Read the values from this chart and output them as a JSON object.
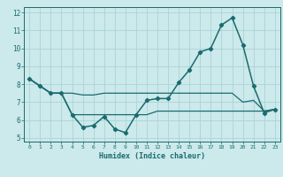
{
  "xlabel": "Humidex (Indice chaleur)",
  "background_color": "#cce9eb",
  "grid_color": "#aad4d6",
  "line_color": "#1a6b6e",
  "xlim": [
    -0.5,
    23.5
  ],
  "ylim": [
    4.8,
    12.3
  ],
  "yticks": [
    5,
    6,
    7,
    8,
    9,
    10,
    11,
    12
  ],
  "xticks": [
    0,
    1,
    2,
    3,
    4,
    5,
    6,
    7,
    8,
    9,
    10,
    11,
    12,
    13,
    14,
    15,
    16,
    17,
    18,
    19,
    20,
    21,
    22,
    23
  ],
  "series": [
    {
      "x": [
        0,
        1,
        2,
        3,
        4,
        5,
        6,
        7,
        8,
        9,
        10,
        11,
        12,
        13,
        14,
        15,
        16,
        17,
        18,
        19,
        20,
        21,
        22,
        23
      ],
      "y": [
        8.3,
        7.9,
        7.5,
        7.5,
        6.3,
        5.6,
        5.7,
        6.2,
        5.5,
        5.3,
        6.3,
        7.1,
        7.2,
        7.2,
        8.1,
        8.8,
        9.8,
        10.0,
        11.3,
        11.7,
        10.2,
        7.9,
        6.4,
        6.6
      ],
      "marker": "D",
      "marker_size": 2.2,
      "linewidth": 1.1
    },
    {
      "x": [
        0,
        1,
        2,
        3,
        4,
        5,
        6,
        7,
        8,
        9,
        10,
        11,
        12,
        13,
        14,
        15,
        16,
        17,
        18,
        19,
        20,
        21,
        22,
        23
      ],
      "y": [
        8.3,
        7.9,
        7.5,
        7.5,
        7.5,
        7.4,
        7.4,
        7.5,
        7.5,
        7.5,
        7.5,
        7.5,
        7.5,
        7.5,
        7.5,
        7.5,
        7.5,
        7.5,
        7.5,
        7.5,
        7.0,
        7.1,
        6.5,
        6.6
      ],
      "marker": null,
      "linewidth": 0.9
    },
    {
      "x": [
        0,
        1,
        2,
        3,
        4,
        5,
        6,
        7,
        8,
        9,
        10,
        11,
        12,
        13,
        14,
        15,
        16,
        17,
        18,
        19,
        20,
        21,
        22,
        23
      ],
      "y": [
        8.3,
        7.9,
        7.5,
        7.5,
        6.3,
        6.3,
        6.3,
        6.3,
        6.3,
        6.3,
        6.3,
        6.3,
        6.5,
        6.5,
        6.5,
        6.5,
        6.5,
        6.5,
        6.5,
        6.5,
        6.5,
        6.5,
        6.5,
        6.6
      ],
      "marker": null,
      "linewidth": 0.9
    }
  ]
}
